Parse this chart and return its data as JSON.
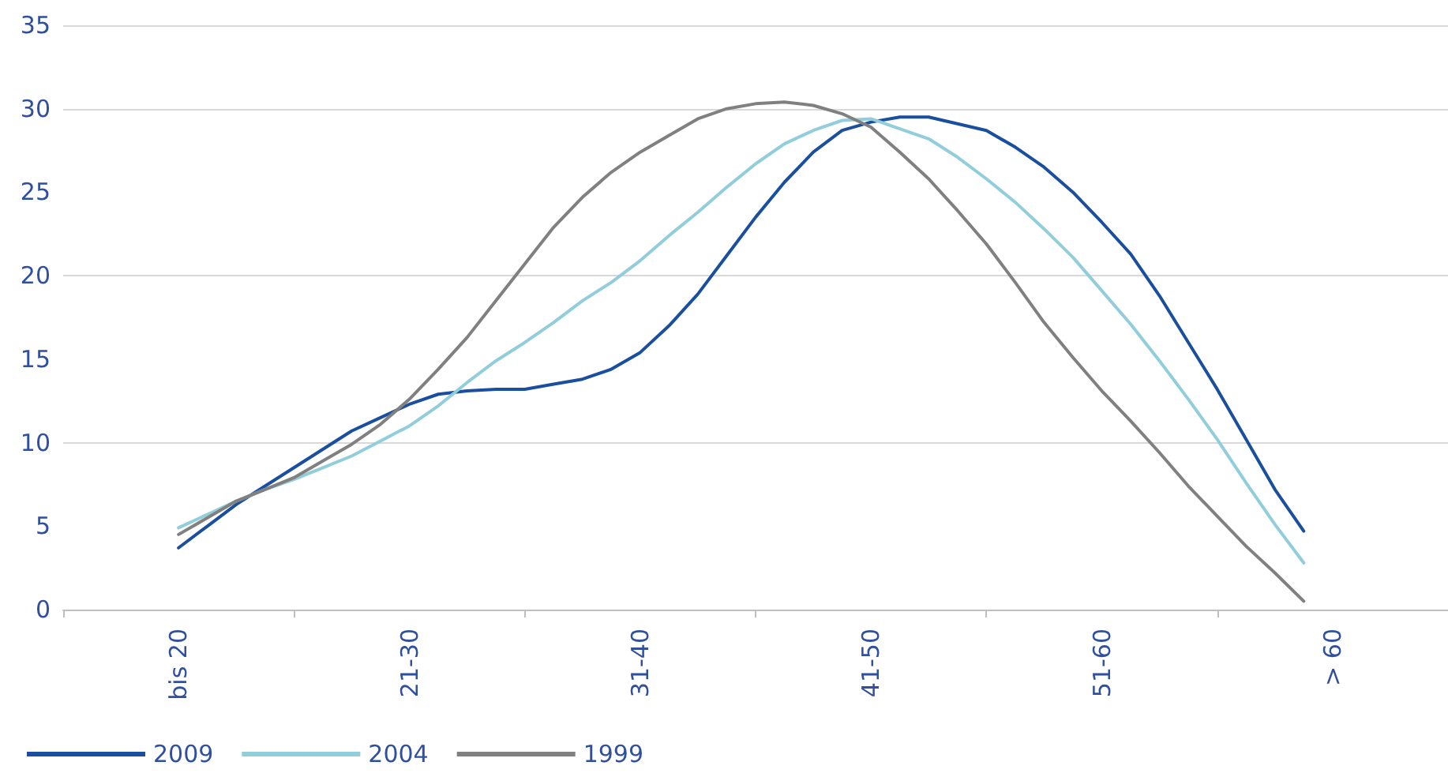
{
  "chart_data": {
    "type": "line",
    "categories": [
      null,
      null,
      null,
      null,
      "bis 20",
      null,
      null,
      null,
      null,
      null,
      null,
      null,
      "21-30",
      null,
      null,
      null,
      null,
      null,
      null,
      null,
      "31-40",
      null,
      null,
      null,
      null,
      null,
      null,
      null,
      "41-50",
      null,
      null,
      null,
      null,
      null,
      null,
      null,
      "51-60",
      null,
      null,
      null,
      null,
      null,
      null,
      null,
      "> 60",
      null,
      null,
      null,
      null
    ],
    "ylim": [
      0,
      35
    ],
    "yticks": [
      0,
      5,
      10,
      15,
      20,
      25,
      30,
      35
    ],
    "grid": "y",
    "legend": "bottom left",
    "marker": "none",
    "line_style": "solid",
    "series": [
      {
        "name": "2009",
        "color": "#1a4fa0",
        "values": [
          null,
          null,
          null,
          null,
          3.7,
          5.0,
          6.3,
          7.4,
          8.5,
          9.6,
          10.7,
          11.5,
          12.3,
          12.9,
          13.1,
          13.2,
          13.2,
          13.5,
          13.8,
          14.4,
          15.4,
          17.0,
          18.9,
          21.2,
          23.5,
          25.6,
          27.4,
          28.7,
          29.2,
          29.5,
          29.5,
          29.1,
          28.7,
          27.7,
          26.5,
          25.0,
          23.2,
          21.3,
          18.8,
          16.0,
          13.2,
          10.2,
          7.2,
          4.7,
          null,
          null,
          null,
          null,
          null
        ]
      },
      {
        "name": "2004",
        "color": "#92cddc",
        "values": [
          null,
          null,
          null,
          null,
          4.9,
          5.7,
          6.5,
          7.2,
          7.8,
          8.5,
          9.2,
          10.1,
          11.0,
          12.2,
          13.6,
          14.9,
          16.0,
          17.2,
          18.5,
          19.6,
          20.9,
          22.4,
          23.8,
          25.3,
          26.7,
          27.9,
          28.7,
          29.3,
          29.4,
          28.8,
          28.2,
          27.1,
          25.8,
          24.4,
          22.8,
          21.1,
          19.1,
          17.1,
          14.9,
          12.6,
          10.2,
          7.6,
          5.1,
          2.8,
          null,
          null,
          null,
          null,
          null
        ]
      },
      {
        "name": "1999",
        "color": "#808080",
        "values": [
          null,
          null,
          null,
          null,
          4.5,
          5.5,
          6.5,
          7.2,
          7.9,
          8.9,
          9.9,
          11.1,
          12.6,
          14.4,
          16.3,
          18.5,
          20.7,
          22.9,
          24.7,
          26.2,
          27.4,
          28.4,
          29.4,
          30.0,
          30.3,
          30.4,
          30.2,
          29.7,
          28.9,
          27.4,
          25.8,
          23.9,
          21.9,
          19.6,
          17.2,
          15.1,
          13.1,
          11.3,
          9.4,
          7.4,
          5.6,
          3.8,
          2.2,
          0.5,
          null,
          null,
          null,
          null,
          null
        ]
      }
    ]
  }
}
